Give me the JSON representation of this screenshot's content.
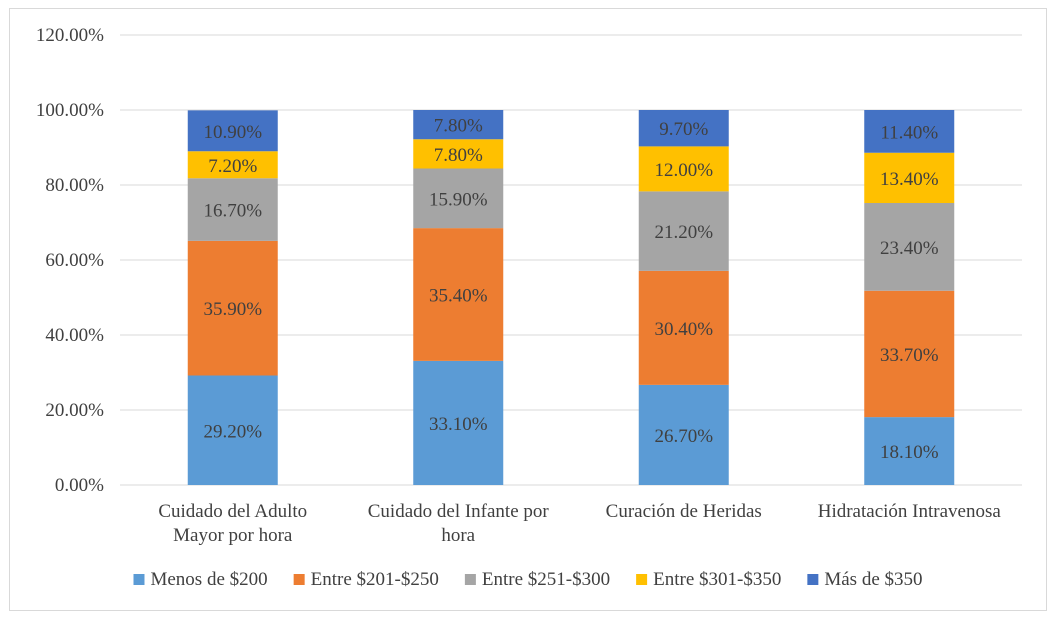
{
  "chart_data": {
    "type": "bar",
    "stacked": true,
    "categories": [
      [
        "Cuidado del Adulto",
        "Mayor por hora"
      ],
      [
        "Cuidado del Infante por",
        "hora"
      ],
      [
        "Curación de Heridas"
      ],
      [
        "Hidratación Intravenosa"
      ]
    ],
    "series": [
      {
        "name": "Menos de $200",
        "color": "#5b9bd5",
        "values": [
          29.2,
          33.1,
          26.7,
          18.1
        ],
        "labels": [
          "29.20%",
          "33.10%",
          "26.70%",
          "18.10%"
        ]
      },
      {
        "name": "Entre $201-$250",
        "color": "#ed7d31",
        "values": [
          35.9,
          35.4,
          30.4,
          33.7
        ],
        "labels": [
          "35.90%",
          "35.40%",
          "30.40%",
          "33.70%"
        ]
      },
      {
        "name": "Entre $251-$300",
        "color": "#a5a5a5",
        "values": [
          16.7,
          15.9,
          21.2,
          23.4
        ],
        "labels": [
          "16.70%",
          "15.90%",
          "21.20%",
          "23.40%"
        ]
      },
      {
        "name": "Entre $301-$350",
        "color": "#ffc000",
        "values": [
          7.2,
          7.8,
          12.0,
          13.4
        ],
        "labels": [
          "7.20%",
          "7.80%",
          "12.00%",
          "13.40%"
        ]
      },
      {
        "name": "Más de $350",
        "color": "#4472c4",
        "values": [
          10.9,
          7.8,
          9.7,
          11.4
        ],
        "labels": [
          "10.90%",
          "7.80%",
          "9.70%",
          "11.40%"
        ]
      }
    ],
    "yticks": [
      "0.00%",
      "20.00%",
      "40.00%",
      "60.00%",
      "80.00%",
      "100.00%",
      "120.00%"
    ],
    "ylim": [
      0,
      120
    ],
    "grid": true,
    "legend_position": "bottom",
    "title": "",
    "xlabel": "",
    "ylabel": ""
  }
}
